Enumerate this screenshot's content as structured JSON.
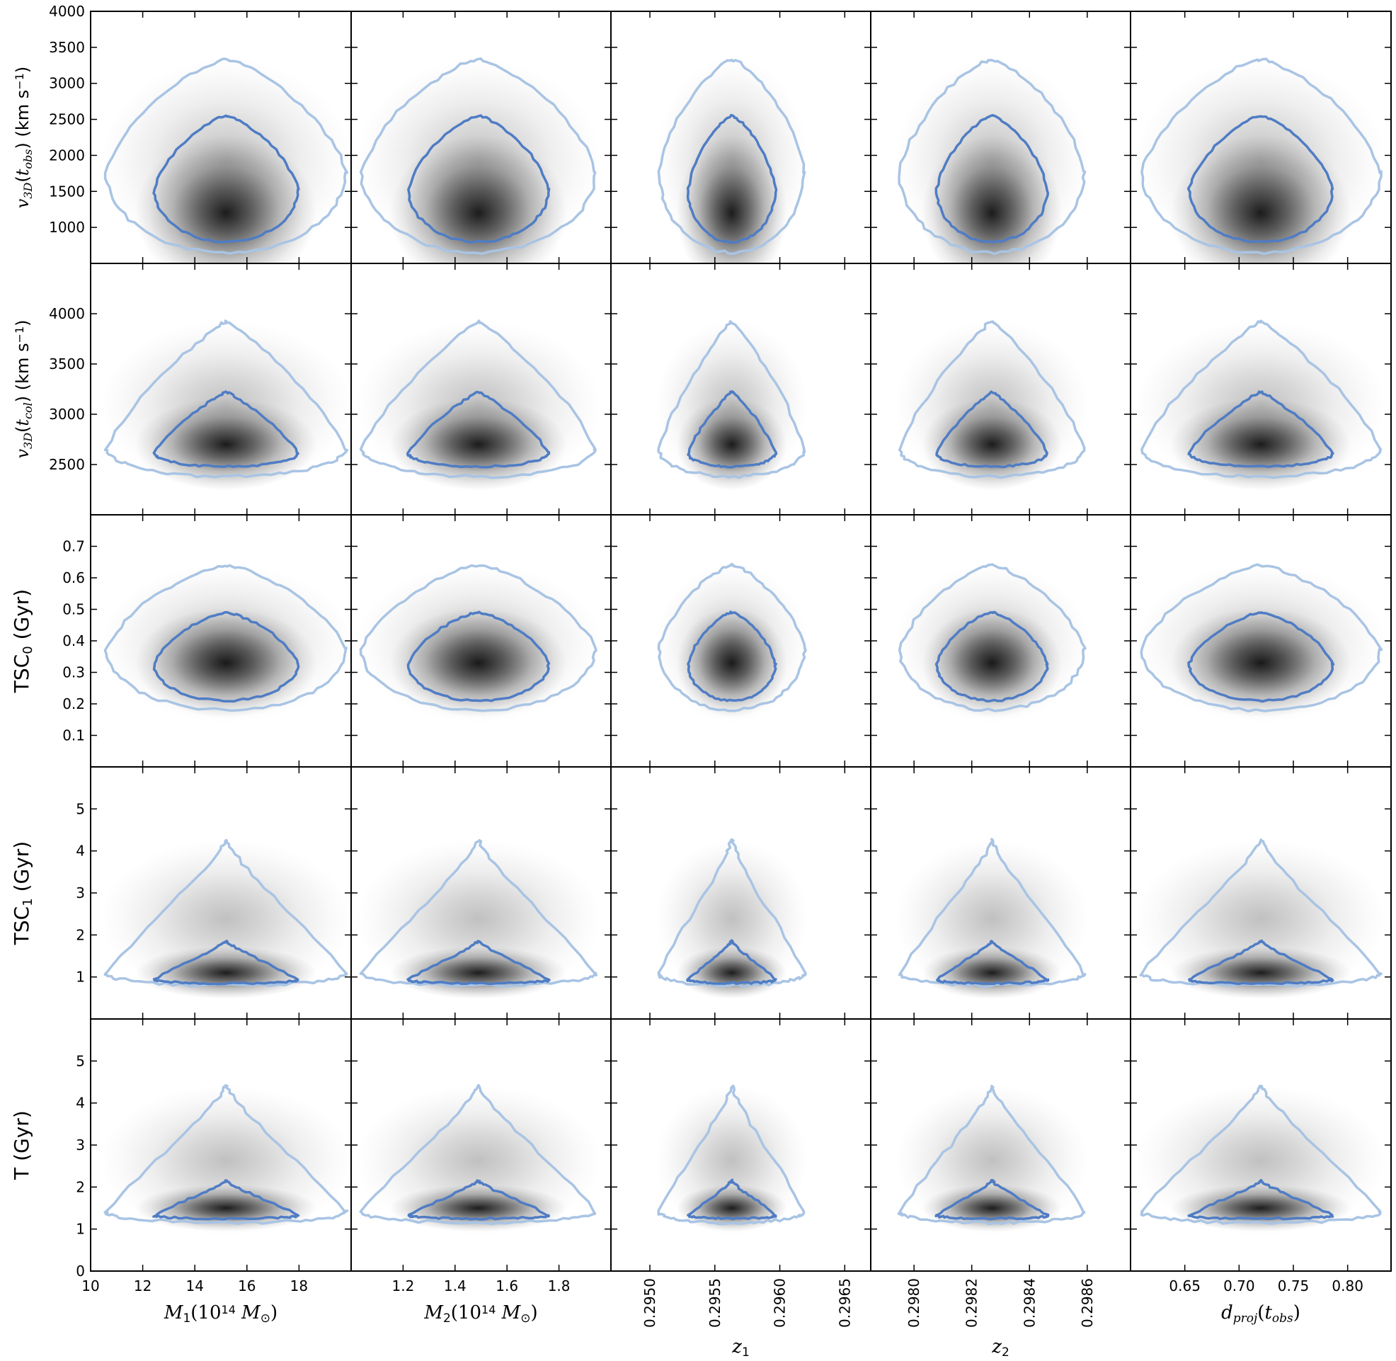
{
  "chart_data": {
    "type": "contour-density-grid",
    "title": "",
    "grid": false,
    "contour_levels": [
      "68%",
      "95%"
    ],
    "colors": {
      "inner_contour": "#4f7cc4",
      "outer_contour": "#a9c4e4",
      "density": "#000000",
      "frame": "#000000"
    },
    "columns": [
      {
        "id": "M1",
        "xlabel": "M₁(10¹⁴ M⊙)",
        "xlim": [
          10,
          20
        ],
        "xticks": [
          10,
          12,
          14,
          16,
          18
        ],
        "xtick_labels": [
          "10",
          "12",
          "14",
          "16",
          "18"
        ],
        "rotate_ticks": false,
        "center": 15.2,
        "half_width": 4.6
      },
      {
        "id": "M2",
        "xlabel": "M₂(10¹⁴ M⊙)",
        "xlim": [
          1.0,
          2.0
        ],
        "xticks": [
          1.2,
          1.4,
          1.6,
          1.8
        ],
        "xtick_labels": [
          "1.2",
          "1.4",
          "1.6",
          "1.8"
        ],
        "rotate_ticks": false,
        "center": 1.49,
        "half_width": 0.45
      },
      {
        "id": "z1",
        "xlabel": "z₁",
        "xlim": [
          0.2947,
          0.2967
        ],
        "xticks": [
          0.295,
          0.2955,
          0.296,
          0.2965
        ],
        "xtick_labels": [
          "0.2950",
          "0.2955",
          "0.2960",
          "0.2965"
        ],
        "rotate_ticks": true,
        "center": 0.29563,
        "half_width": 0.00056
      },
      {
        "id": "z2",
        "xlabel": "z₂",
        "xlim": [
          0.29785,
          0.29875
        ],
        "xticks": [
          0.298,
          0.2982,
          0.2984,
          0.2986
        ],
        "xtick_labels": [
          "0.2980",
          "0.2982",
          "0.2984",
          "0.2986"
        ],
        "rotate_ticks": true,
        "center": 0.29827,
        "half_width": 0.00032
      },
      {
        "id": "dproj",
        "xlabel": "d_proj(t_obs)",
        "xlim": [
          0.6,
          0.84
        ],
        "xticks": [
          0.65,
          0.7,
          0.75,
          0.8
        ],
        "xtick_labels": [
          "0.65",
          "0.70",
          "0.75",
          "0.80"
        ],
        "rotate_ticks": false,
        "center": 0.72,
        "half_width": 0.11
      }
    ],
    "rows": [
      {
        "id": "v3d_obs",
        "ylabel": "v3D(tobs) (km s⁻¹)",
        "ylim": [
          500,
          4000
        ],
        "yticks": [
          1000,
          1500,
          2000,
          2500,
          3000,
          3500,
          4000
        ],
        "ytick_labels": [
          "1000",
          "1500",
          "2000",
          "2500",
          "3000",
          "3500",
          "4000"
        ],
        "peak": 1200,
        "inner": [
          800,
          2550
        ],
        "outer": [
          650,
          3330
        ],
        "shape": "round"
      },
      {
        "id": "v3d_col",
        "ylabel": "v3D(tcol) (km s⁻¹)",
        "ylim": [
          2000,
          4500
        ],
        "yticks": [
          2500,
          3000,
          3500,
          4000
        ],
        "ytick_labels": [
          "2500",
          "3000",
          "3500",
          "4000"
        ],
        "peak": 2700,
        "inner": [
          2480,
          3220
        ],
        "outer": [
          2380,
          3920
        ],
        "shape": "skew"
      },
      {
        "id": "tsc0",
        "ylabel": "TSC0 (Gyr)",
        "ylim": [
          0.0,
          0.8
        ],
        "yticks": [
          0.1,
          0.2,
          0.3,
          0.4,
          0.5,
          0.6,
          0.7
        ],
        "ytick_labels": [
          "0.1",
          "0.2",
          "0.3",
          "0.4",
          "0.5",
          "0.6",
          "0.7"
        ],
        "peak": 0.33,
        "inner": [
          0.21,
          0.49
        ],
        "outer": [
          0.18,
          0.64
        ],
        "shape": "round"
      },
      {
        "id": "tsc1",
        "ylabel": "TSC1 (Gyr)",
        "ylim": [
          0,
          6
        ],
        "yticks": [
          1,
          2,
          3,
          4,
          5
        ],
        "ytick_labels": [
          "1",
          "2",
          "3",
          "4",
          "5"
        ],
        "peak": 1.1,
        "inner": [
          0.85,
          1.85
        ],
        "outer": [
          0.8,
          4.25
        ],
        "shape": "peak"
      },
      {
        "id": "T",
        "ylabel": "T (Gyr)",
        "ylim": [
          0,
          6
        ],
        "yticks": [
          0,
          1,
          2,
          3,
          4,
          5
        ],
        "ytick_labels": [
          "0",
          "1",
          "2",
          "3",
          "4",
          "5"
        ],
        "peak": 1.5,
        "inner": [
          1.25,
          2.15
        ],
        "outer": [
          1.15,
          4.4
        ],
        "shape": "peak"
      }
    ]
  }
}
